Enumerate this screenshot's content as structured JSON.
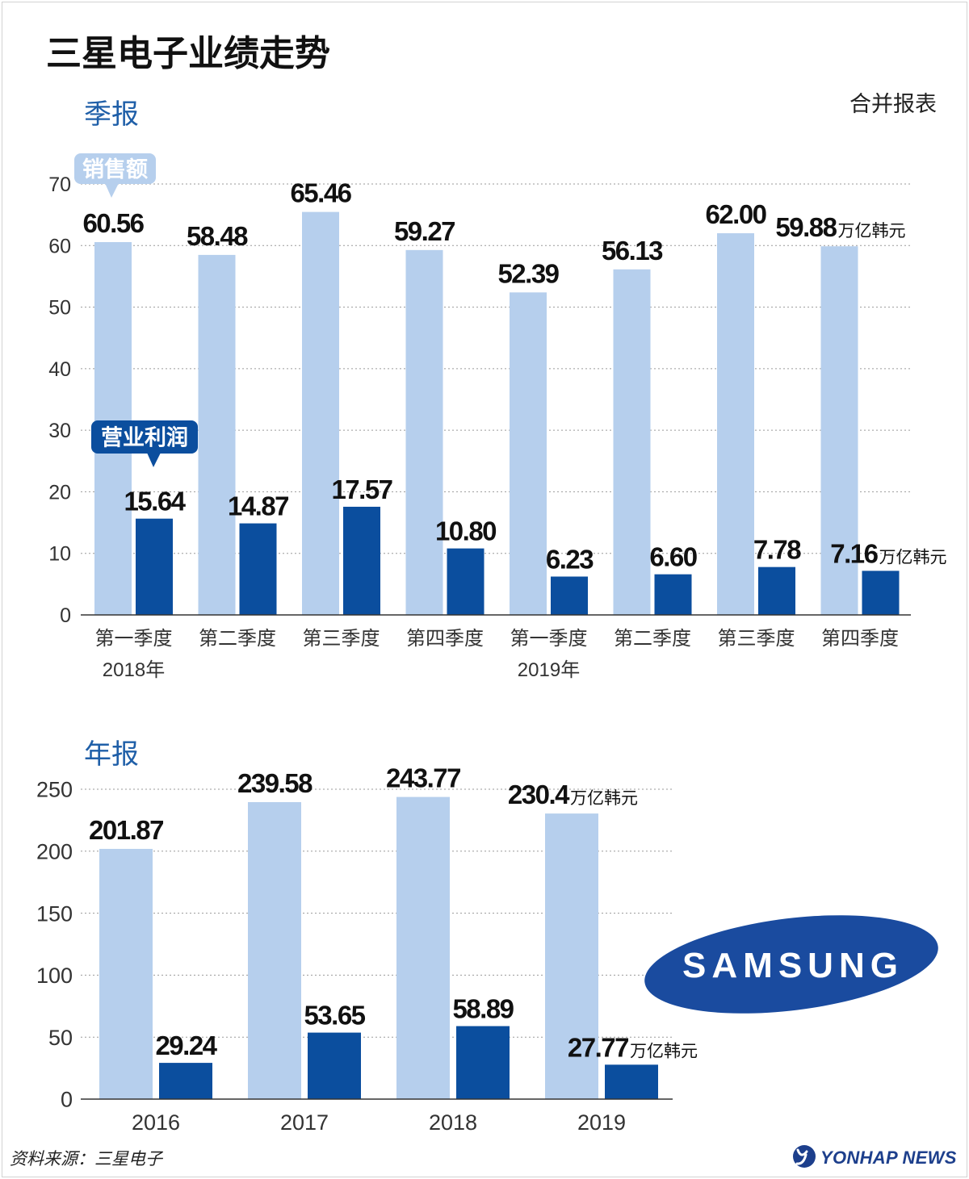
{
  "title": "三星电子业绩走势",
  "note": "合并报表",
  "source": "资料来源：三星电子",
  "samsung_logo": "SAMSUNG",
  "agency_logo": "YONHAP NEWS",
  "agency_icon": "yonhap-emblem-icon",
  "colors": {
    "sales": "#b6cfed",
    "profit": "#0b4e9e",
    "subtitle": "#1f5fa8",
    "samsung_blue": "#1a4b9f",
    "agency_blue": "#1d3f8c"
  },
  "chart_data": [
    {
      "type": "bar",
      "title": "季报",
      "categories": [
        "第一季度",
        "第二季度",
        "第三季度",
        "第四季度",
        "第一季度",
        "第二季度",
        "第三季度",
        "第四季度"
      ],
      "category_groups": [
        {
          "label": "2018年",
          "at": 0
        },
        {
          "label": "2019年",
          "at": 4
        }
      ],
      "unit": "万亿韩元",
      "ylim": [
        0,
        70
      ],
      "yticks": [
        0,
        10,
        20,
        30,
        40,
        50,
        60,
        70
      ],
      "grid": true,
      "legend": "callouts",
      "series": [
        {
          "name": "销售额",
          "values": [
            60.56,
            58.48,
            65.46,
            59.27,
            52.39,
            56.13,
            62.0,
            59.88
          ],
          "labels": [
            "60.56",
            "58.48",
            "65.46",
            "59.27",
            "52.39",
            "56.13",
            "62.00",
            "59.88"
          ]
        },
        {
          "name": "营业利润",
          "values": [
            15.64,
            14.87,
            17.57,
            10.8,
            6.23,
            6.6,
            7.78,
            7.16
          ],
          "labels": [
            "15.64",
            "14.87",
            "17.57",
            "10.80",
            "6.23",
            "6.60",
            "7.78",
            "7.16"
          ]
        }
      ]
    },
    {
      "type": "bar",
      "title": "年报",
      "categories": [
        "2016",
        "2017",
        "2018",
        "2019"
      ],
      "category_groups": [],
      "unit": "万亿韩元",
      "ylim": [
        0,
        250
      ],
      "yticks": [
        0,
        50,
        100,
        150,
        200,
        250
      ],
      "grid": true,
      "legend": "none",
      "series": [
        {
          "values": [
            201.87,
            239.58,
            243.77,
            230.4
          ],
          "labels": [
            "201.87",
            "239.58",
            "243.77",
            "230.4"
          ]
        },
        {
          "values": [
            29.24,
            53.65,
            58.89,
            27.77
          ],
          "labels": [
            "29.24",
            "53.65",
            "58.89",
            "27.77"
          ]
        }
      ]
    }
  ]
}
